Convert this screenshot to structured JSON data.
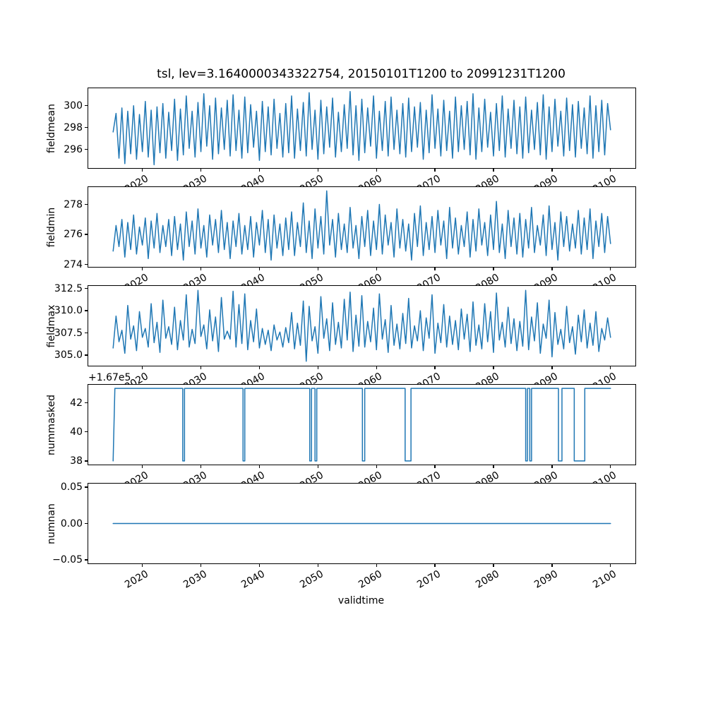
{
  "figure": {
    "title": "tsl, lev=3.1640000343322754, 20150101T1200 to 20991231T1200",
    "xlabel": "validtime",
    "line_color": "#1f77b4",
    "line_width": 1.5,
    "background": "#ffffff",
    "xticks": [
      {
        "v": 2020,
        "label": "2020"
      },
      {
        "v": 2030,
        "label": "2030"
      },
      {
        "v": 2040,
        "label": "2040"
      },
      {
        "v": 2050,
        "label": "2050"
      },
      {
        "v": 2060,
        "label": "2060"
      },
      {
        "v": 2070,
        "label": "2070"
      },
      {
        "v": 2080,
        "label": "2080"
      },
      {
        "v": 2090,
        "label": "2090"
      },
      {
        "v": 2100,
        "label": "2100"
      }
    ]
  },
  "chart_data": [
    {
      "type": "line",
      "ylabel": "fieldmean",
      "xlim": [
        2010.75,
        2104.25
      ],
      "ylim": [
        294.3,
        301.6
      ],
      "yticks": [
        {
          "v": 296,
          "label": "296"
        },
        {
          "v": 298,
          "label": "298"
        },
        {
          "v": 300,
          "label": "300"
        }
      ],
      "series": [
        {
          "x_start": 2015.0,
          "x_step": 0.5,
          "values": [
            297.6,
            299.3,
            295.2,
            299.8,
            294.7,
            299.5,
            295.6,
            300.0,
            295.1,
            299.2,
            295.8,
            300.4,
            295.3,
            299.6,
            294.6,
            299.9,
            295.7,
            300.2,
            295.2,
            299.4,
            295.9,
            300.6,
            295.0,
            299.7,
            295.5,
            300.9,
            296.1,
            299.5,
            295.3,
            300.3,
            295.8,
            301.1,
            296.3,
            300.0,
            295.1,
            300.7,
            295.6,
            299.8,
            296.0,
            300.5,
            295.4,
            301.0,
            295.9,
            299.6,
            295.2,
            300.8,
            295.7,
            300.1,
            296.2,
            299.5,
            295.0,
            300.4,
            295.8,
            299.9,
            295.5,
            300.6,
            296.1,
            299.3,
            295.3,
            300.2,
            295.7,
            300.9,
            295.2,
            299.7,
            295.9,
            300.3,
            295.4,
            301.2,
            296.0,
            299.6,
            295.1,
            300.5,
            295.6,
            299.9,
            296.2,
            300.7,
            295.3,
            299.4,
            295.8,
            300.1,
            296.1,
            301.3,
            295.5,
            300.0,
            295.0,
            300.6,
            295.7,
            299.8,
            296.3,
            300.9,
            295.2,
            299.5,
            295.9,
            300.4,
            295.4,
            300.8,
            296.0,
            299.6,
            295.6,
            300.2,
            295.3,
            300.7,
            295.8,
            299.9,
            296.2,
            300.3,
            295.1,
            299.6,
            295.7,
            301.0,
            296.1,
            299.7,
            295.4,
            300.5,
            295.9,
            299.5,
            295.2,
            300.8,
            295.8,
            300.0,
            296.0,
            300.4,
            295.5,
            301.1,
            295.1,
            299.8,
            295.8,
            300.6,
            296.2,
            299.4,
            295.4,
            300.2,
            295.9,
            300.9,
            295.3,
            299.7,
            296.1,
            300.5,
            295.6,
            299.9,
            295.2,
            300.8,
            295.7,
            299.6,
            296.0,
            300.3,
            295.5,
            301.0,
            295.1,
            299.9,
            295.8,
            300.6,
            296.3,
            299.5,
            295.4,
            300.7,
            295.9,
            300.1,
            295.3,
            300.4,
            296.1,
            299.8,
            295.6,
            300.9,
            295.2,
            300.0,
            295.8,
            300.5,
            295.5,
            300.2,
            297.8
          ]
        }
      ]
    },
    {
      "type": "line",
      "ylabel": "fieldmin",
      "xlim": [
        2010.75,
        2104.25
      ],
      "ylim": [
        273.85,
        279.15
      ],
      "yticks": [
        {
          "v": 274,
          "label": "274"
        },
        {
          "v": 276,
          "label": "276"
        },
        {
          "v": 278,
          "label": "278"
        }
      ],
      "series": [
        {
          "x_start": 2015.0,
          "x_step": 0.5,
          "values": [
            274.9,
            276.6,
            275.2,
            277.0,
            274.5,
            276.8,
            275.0,
            277.3,
            274.7,
            276.5,
            275.3,
            277.1,
            274.4,
            276.9,
            275.1,
            277.4,
            274.8,
            276.6,
            275.2,
            277.0,
            274.6,
            277.2,
            275.0,
            276.7,
            274.3,
            277.5,
            275.2,
            276.9,
            274.7,
            277.7,
            275.1,
            276.6,
            274.5,
            277.3,
            275.3,
            277.0,
            274.8,
            277.6,
            275.0,
            276.8,
            274.4,
            276.9,
            275.2,
            277.4,
            274.7,
            276.6,
            275.0,
            277.2,
            274.5,
            276.8,
            275.3,
            277.6,
            274.8,
            277.0,
            274.3,
            277.3,
            275.1,
            276.7,
            274.6,
            277.1,
            275.0,
            277.5,
            274.6,
            276.8,
            275.2,
            278.1,
            274.8,
            276.9,
            274.4,
            277.7,
            275.1,
            277.2,
            274.7,
            278.9,
            275.3,
            277.0,
            274.5,
            277.4,
            275.0,
            276.7,
            274.8,
            277.8,
            275.1,
            276.6,
            274.4,
            277.2,
            275.2,
            277.6,
            274.6,
            276.9,
            275.0,
            278.0,
            274.7,
            277.3,
            275.3,
            276.8,
            274.5,
            277.7,
            275.1,
            277.0,
            274.9,
            276.7,
            274.3,
            277.4,
            275.2,
            277.9,
            274.6,
            276.8,
            275.0,
            277.2,
            274.8,
            277.6,
            275.3,
            276.9,
            274.4,
            277.8,
            275.1,
            277.1,
            274.7,
            276.6,
            275.2,
            277.5,
            274.5,
            277.0,
            274.9,
            277.7,
            275.3,
            276.8,
            274.6,
            277.3,
            275.0,
            278.2,
            274.8,
            276.7,
            274.4,
            277.6,
            275.2,
            277.1,
            274.7,
            277.4,
            274.5,
            277.0,
            275.1,
            277.8,
            274.8,
            276.6,
            275.3,
            277.3,
            274.6,
            277.9,
            275.0,
            276.8,
            274.3,
            277.5,
            275.2,
            277.2,
            274.9,
            276.7,
            275.1,
            277.6,
            274.7,
            277.1,
            275.0,
            277.7,
            274.4,
            276.9,
            275.2,
            277.4,
            274.8,
            277.2,
            275.4
          ]
        }
      ]
    },
    {
      "type": "line",
      "ylabel": "fieldmax",
      "xlim": [
        2010.75,
        2104.25
      ],
      "ylim": [
        303.8,
        312.8
      ],
      "yticks": [
        {
          "v": 305.0,
          "label": "305.0"
        },
        {
          "v": 307.5,
          "label": "307.5"
        },
        {
          "v": 310.0,
          "label": "310.0"
        },
        {
          "v": 312.5,
          "label": "312.5"
        }
      ],
      "series": [
        {
          "x_start": 2015.0,
          "x_step": 0.5,
          "values": [
            305.8,
            309.4,
            306.5,
            307.8,
            305.2,
            310.6,
            306.8,
            308.3,
            305.5,
            309.9,
            307.0,
            308.0,
            305.9,
            310.8,
            306.4,
            308.7,
            305.3,
            311.2,
            306.9,
            308.2,
            306.2,
            310.4,
            305.6,
            308.9,
            306.7,
            311.8,
            305.9,
            307.9,
            306.3,
            312.3,
            307.1,
            308.4,
            305.7,
            310.1,
            306.6,
            309.3,
            305.4,
            311.5,
            306.8,
            307.7,
            306.8,
            312.2,
            305.9,
            310.7,
            306.3,
            311.9,
            305.6,
            308.9,
            306.5,
            310.2,
            305.8,
            308.0,
            306.2,
            307.8,
            305.5,
            308.4,
            306.7,
            307.6,
            305.9,
            308.1,
            306.4,
            309.8,
            305.7,
            308.6,
            306.1,
            311.1,
            304.3,
            310.5,
            306.6,
            308.2,
            305.2,
            311.6,
            306.9,
            309.1,
            305.5,
            310.9,
            306.2,
            308.7,
            305.8,
            311.3,
            306.7,
            312.1,
            305.4,
            309.5,
            306.0,
            311.7,
            305.9,
            308.8,
            306.5,
            310.3,
            305.6,
            311.9,
            306.8,
            309.0,
            305.3,
            310.6,
            306.1,
            308.5,
            305.7,
            309.7,
            306.3,
            311.4,
            305.8,
            308.3,
            306.6,
            310.0,
            305.5,
            309.2,
            306.9,
            311.8,
            305.2,
            308.6,
            306.4,
            310.7,
            305.9,
            309.4,
            306.2,
            308.9,
            305.6,
            310.2,
            306.8,
            309.6,
            305.4,
            311.0,
            306.1,
            308.4,
            305.7,
            310.8,
            306.5,
            309.9,
            305.3,
            312.0,
            306.7,
            308.7,
            305.9,
            310.4,
            306.3,
            309.1,
            305.5,
            308.8,
            306.0,
            312.3,
            305.6,
            309.3,
            306.6,
            310.9,
            305.2,
            308.5,
            306.9,
            311.2,
            304.8,
            309.8,
            306.2,
            307.9,
            305.7,
            310.5,
            306.4,
            308.2,
            305.1,
            309.5,
            306.5,
            310.1,
            305.8,
            308.6,
            306.1,
            309.9,
            305.4,
            308.0,
            306.7,
            309.2,
            307.0
          ]
        }
      ]
    },
    {
      "type": "line",
      "ylabel": "nummasked",
      "offset_text": "+1.67e5",
      "xlim": [
        2010.75,
        2104.25
      ],
      "ylim": [
        167037.75,
        167043.25
      ],
      "yticks": [
        {
          "v": 167038,
          "label": "38"
        },
        {
          "v": 167040,
          "label": "40"
        },
        {
          "v": 167042,
          "label": "42"
        }
      ],
      "series": [
        {
          "points": [
            [
              2015.0,
              167038
            ],
            [
              2015.3,
              167043
            ],
            [
              2026.9,
              167043
            ],
            [
              2026.9,
              167038
            ],
            [
              2027.2,
              167038
            ],
            [
              2027.2,
              167043
            ],
            [
              2037.2,
              167043
            ],
            [
              2037.2,
              167038
            ],
            [
              2037.5,
              167038
            ],
            [
              2037.5,
              167043
            ],
            [
              2048.6,
              167043
            ],
            [
              2048.6,
              167038
            ],
            [
              2048.9,
              167038
            ],
            [
              2048.9,
              167043
            ],
            [
              2049.5,
              167043
            ],
            [
              2049.5,
              167038
            ],
            [
              2049.8,
              167038
            ],
            [
              2049.8,
              167043
            ],
            [
              2057.6,
              167043
            ],
            [
              2057.6,
              167038
            ],
            [
              2058.0,
              167038
            ],
            [
              2058.0,
              167043
            ],
            [
              2064.9,
              167043
            ],
            [
              2064.9,
              167038
            ],
            [
              2065.9,
              167038
            ],
            [
              2065.9,
              167043
            ],
            [
              2085.5,
              167043
            ],
            [
              2085.5,
              167038
            ],
            [
              2085.8,
              167038
            ],
            [
              2085.8,
              167043
            ],
            [
              2086.2,
              167043
            ],
            [
              2086.2,
              167038
            ],
            [
              2086.5,
              167038
            ],
            [
              2086.5,
              167043
            ],
            [
              2091.1,
              167043
            ],
            [
              2091.1,
              167038
            ],
            [
              2091.7,
              167038
            ],
            [
              2091.7,
              167043
            ],
            [
              2093.8,
              167043
            ],
            [
              2093.8,
              167038
            ],
            [
              2095.6,
              167038
            ],
            [
              2095.6,
              167043
            ],
            [
              2100.0,
              167043
            ]
          ]
        }
      ]
    },
    {
      "type": "line",
      "ylabel": "numnan",
      "xlim": [
        2010.75,
        2104.25
      ],
      "ylim": [
        -0.055,
        0.055
      ],
      "yticks": [
        {
          "v": -0.05,
          "label": "−0.05"
        },
        {
          "v": 0,
          "label": "0.00"
        },
        {
          "v": 0.05,
          "label": "0.05"
        }
      ],
      "series": [
        {
          "points": [
            [
              2015.0,
              0
            ],
            [
              2100.0,
              0
            ]
          ]
        }
      ]
    }
  ]
}
